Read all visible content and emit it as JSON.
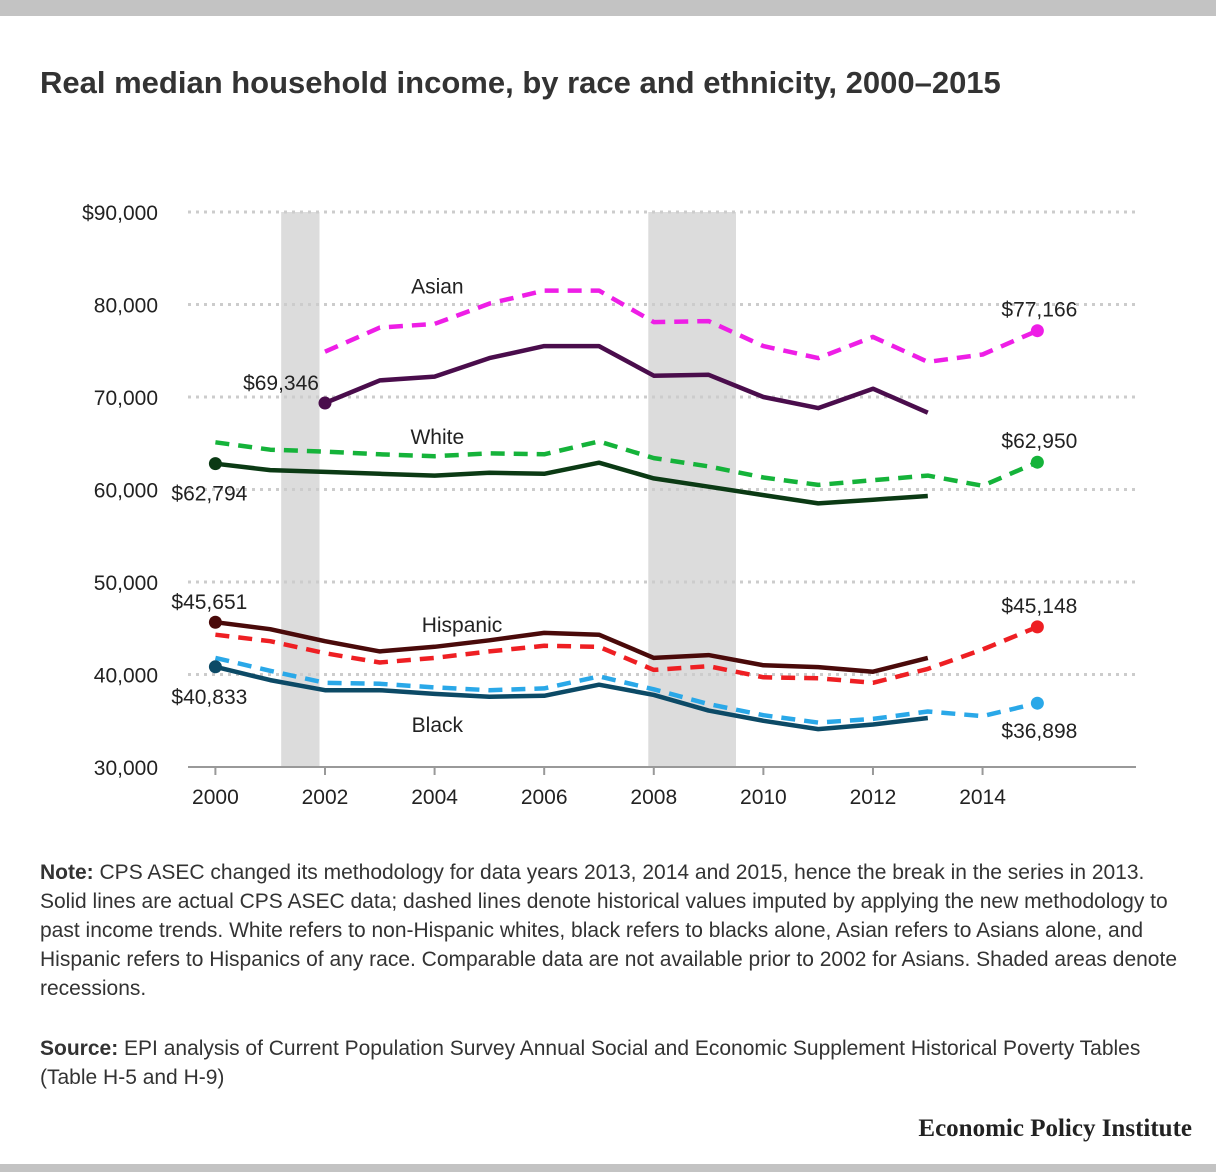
{
  "header": {
    "title": "Real median household income, by race and ethnicity, 2000–2015"
  },
  "footer": {
    "note_label": "Note:",
    "note_text": "CPS ASEC changed its methodology for data years 2013, 2014 and 2015, hence the break in the series in 2013. Solid lines are actual CPS ASEC data; dashed lines denote historical values imputed by applying the new methodology to past income trends. White refers to non-Hispanic whites, black refers to blacks alone, Asian refers to Asians alone, and Hispanic refers to Hispanics of any race. Comparable data are not available prior to 2002 for Asians. Shaded areas denote recessions.",
    "source_label": "Source:",
    "source_text": "EPI analysis of Current Population Survey Annual Social and Economic Supplement Historical Poverty Tables (Table H-5 and H-9)",
    "brand": "Economic Policy Institute"
  },
  "chart_data": {
    "type": "line",
    "title": "Real median household income, by race and ethnicity, 2000–2015",
    "xlabel": "",
    "ylabel": "",
    "xlim": [
      1999.5,
      2016.8
    ],
    "ylim": [
      30000,
      90000
    ],
    "grid": true,
    "x_ticks": [
      2000,
      2002,
      2004,
      2006,
      2008,
      2010,
      2012,
      2014
    ],
    "x_tick_labels": [
      "2000",
      "2002",
      "2004",
      "2006",
      "2008",
      "2010",
      "2012",
      "2014"
    ],
    "y_ticks": [
      30000,
      40000,
      50000,
      60000,
      70000,
      80000,
      90000
    ],
    "y_tick_labels": [
      "30,000",
      "40,000",
      "50,000",
      "60,000",
      "70,000",
      "80,000",
      "$90,000"
    ],
    "recessions": [
      [
        2001.2,
        2001.9
      ],
      [
        2007.9,
        2009.5
      ]
    ],
    "colors": {
      "asian_solid": "#4a0d4c",
      "asian_dashed": "#ee1ee6",
      "white_solid": "#0b3a14",
      "white_dashed": "#15b33a",
      "hispanic_solid": "#4a0a0a",
      "hispanic_dashed": "#ee1f23",
      "black_solid": "#0c4a66",
      "black_dashed": "#2aa8e8",
      "recession": "#dcdcdc",
      "grid": "#cccccc"
    },
    "series": [
      {
        "group": "Asian",
        "style": "dashed",
        "x": [
          2002,
          2003,
          2004,
          2005,
          2006,
          2007,
          2008,
          2009,
          2010,
          2011,
          2012,
          2013,
          2014,
          2015
        ],
        "y": [
          74900,
          77500,
          77900,
          80100,
          81500,
          81500,
          78100,
          78200,
          75500,
          74200,
          76500,
          73800,
          74600,
          77166
        ]
      },
      {
        "group": "Asian",
        "style": "solid",
        "x": [
          2002,
          2003,
          2004,
          2005,
          2006,
          2007,
          2008,
          2009,
          2010,
          2011,
          2012,
          2013
        ],
        "y": [
          69346,
          71800,
          72200,
          74200,
          75500,
          75500,
          72300,
          72400,
          70000,
          68800,
          70900,
          68300
        ]
      },
      {
        "group": "White",
        "style": "dashed",
        "x": [
          2000,
          2001,
          2002,
          2003,
          2004,
          2005,
          2006,
          2007,
          2008,
          2009,
          2010,
          2011,
          2012,
          2013,
          2014,
          2015
        ],
        "y": [
          65100,
          64300,
          64100,
          63800,
          63600,
          63900,
          63800,
          65200,
          63400,
          62500,
          61300,
          60500,
          61000,
          61500,
          60400,
          62950
        ]
      },
      {
        "group": "White",
        "style": "solid",
        "x": [
          2000,
          2001,
          2002,
          2003,
          2004,
          2005,
          2006,
          2007,
          2008,
          2009,
          2010,
          2011,
          2012,
          2013
        ],
        "y": [
          62794,
          62100,
          61900,
          61700,
          61500,
          61800,
          61700,
          62900,
          61200,
          60300,
          59400,
          58500,
          58900,
          59300
        ]
      },
      {
        "group": "Hispanic",
        "style": "dashed",
        "x": [
          2000,
          2001,
          2002,
          2003,
          2004,
          2005,
          2006,
          2007,
          2008,
          2009,
          2010,
          2011,
          2012,
          2013,
          2014,
          2015
        ],
        "y": [
          44300,
          43600,
          42300,
          41300,
          41800,
          42500,
          43100,
          43000,
          40500,
          40900,
          39700,
          39600,
          39100,
          40600,
          42700,
          45148
        ]
      },
      {
        "group": "Hispanic",
        "style": "solid",
        "x": [
          2000,
          2001,
          2002,
          2003,
          2004,
          2005,
          2006,
          2007,
          2008,
          2009,
          2010,
          2011,
          2012,
          2013
        ],
        "y": [
          45651,
          44900,
          43600,
          42500,
          43000,
          43700,
          44500,
          44300,
          41800,
          42100,
          41000,
          40800,
          40300,
          41800
        ]
      },
      {
        "group": "Black",
        "style": "dashed",
        "x": [
          2000,
          2001,
          2002,
          2003,
          2004,
          2005,
          2006,
          2007,
          2008,
          2009,
          2010,
          2011,
          2012,
          2013,
          2014,
          2015
        ],
        "y": [
          41800,
          40400,
          39100,
          39000,
          38600,
          38300,
          38500,
          39800,
          38400,
          36800,
          35600,
          34800,
          35200,
          36000,
          35500,
          36898
        ]
      },
      {
        "group": "Black",
        "style": "solid",
        "x": [
          2000,
          2001,
          2002,
          2003,
          2004,
          2005,
          2006,
          2007,
          2008,
          2009,
          2010,
          2011,
          2012,
          2013
        ],
        "y": [
          40833,
          39400,
          38300,
          38300,
          37900,
          37600,
          37700,
          38900,
          37800,
          36100,
          35000,
          34100,
          34600,
          35300
        ]
      }
    ],
    "markers": [
      {
        "x": 2002,
        "y": 69346,
        "color": "#4a0d4c",
        "label": "$69,346",
        "anchor": "end",
        "dx": -6,
        "dy": -13
      },
      {
        "x": 2015,
        "y": 77166,
        "color": "#ee1ee6",
        "label": "$77,166",
        "anchor": "middle",
        "dx": 2,
        "dy": -14
      },
      {
        "x": 2000,
        "y": 62794,
        "color": "#0b3a14",
        "label": "$62,794",
        "anchor": "start",
        "dx": -44,
        "dy": 37
      },
      {
        "x": 2015,
        "y": 62950,
        "color": "#15b33a",
        "label": "$62,950",
        "anchor": "middle",
        "dx": 2,
        "dy": -14
      },
      {
        "x": 2000,
        "y": 45651,
        "color": "#4a0a0a",
        "label": "$45,651",
        "anchor": "start",
        "dx": -44,
        "dy": -13
      },
      {
        "x": 2015,
        "y": 45148,
        "color": "#ee1f23",
        "label": "$45,148",
        "anchor": "middle",
        "dx": 2,
        "dy": -14
      },
      {
        "x": 2000,
        "y": 40833,
        "color": "#0c4a66",
        "label": "$40,833",
        "anchor": "start",
        "dx": -44,
        "dy": 37
      },
      {
        "x": 2015,
        "y": 36898,
        "color": "#2aa8e8",
        "label": "$36,898",
        "anchor": "middle",
        "dx": 2,
        "dy": 35
      }
    ],
    "annotations": [
      {
        "text": "Asian",
        "x": 2004.05,
        "y": 81200
      },
      {
        "text": "White",
        "x": 2004.05,
        "y": 64900
      },
      {
        "text": "Hispanic",
        "x": 2004.5,
        "y": 44600
      },
      {
        "text": "Black",
        "x": 2004.05,
        "y": 33800
      }
    ]
  }
}
